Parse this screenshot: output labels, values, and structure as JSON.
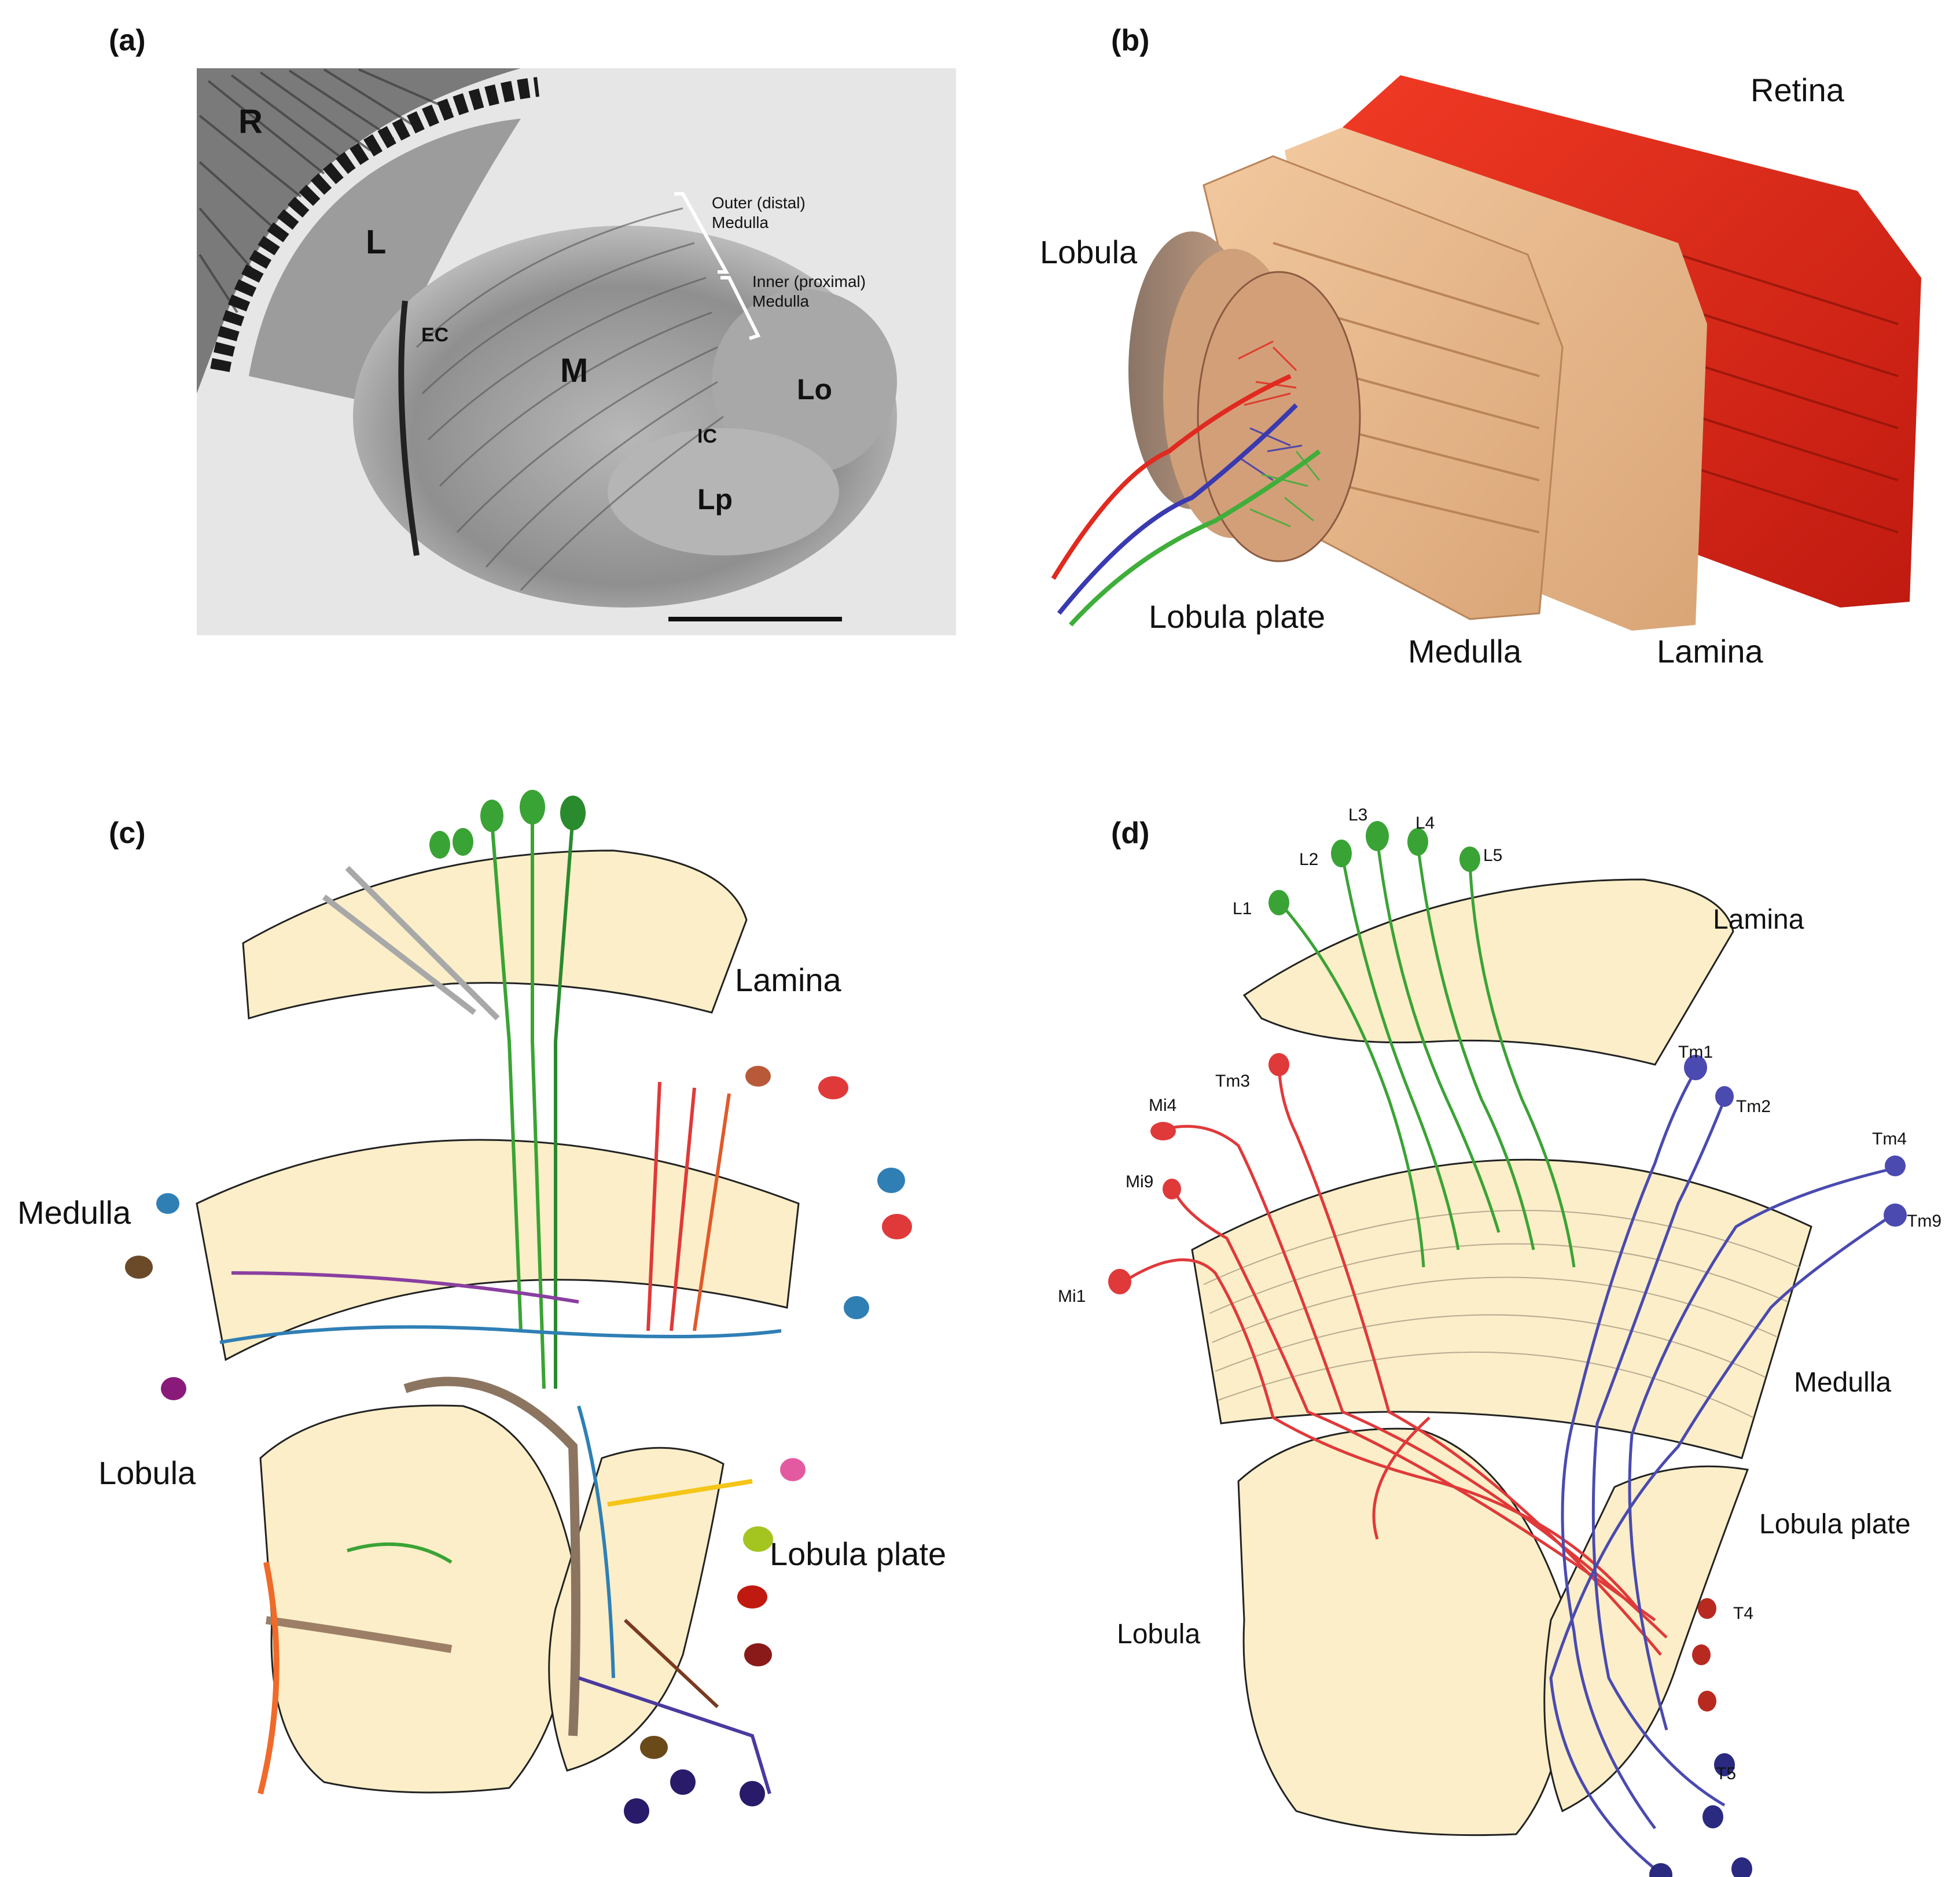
{
  "panels": {
    "a": {
      "letter": "(a)",
      "labels": {
        "R": "R",
        "L": "L",
        "EC": "EC",
        "M": "M",
        "IC": "IC",
        "Lo": "Lo",
        "Lp": "Lp",
        "outer": "Outer (distal)",
        "outer2": "Medulla",
        "inner": "Inner (proximal)",
        "inner2": "Medulla"
      }
    },
    "b": {
      "letter": "(b)",
      "labels": {
        "retina": "Retina",
        "lobula": "Lobula",
        "lobula_plate": "Lobula plate",
        "medulla": "Medulla",
        "lamina": "Lamina"
      }
    },
    "c": {
      "letter": "(c)",
      "labels": {
        "lamina": "Lamina",
        "medulla": "Medulla",
        "lobula": "Lobula",
        "lobula_plate": "Lobula plate"
      }
    },
    "d": {
      "letter": "(d)",
      "labels": {
        "lamina": "Lamina",
        "medulla": "Medulla",
        "lobula": "Lobula",
        "lobula_plate": "Lobula plate",
        "L1": "L1",
        "L2": "L2",
        "L3": "L3",
        "L4": "L4",
        "L5": "L5",
        "Mi1": "Mi1",
        "Mi4": "Mi4",
        "Mi9": "Mi9",
        "Tm3": "Tm3",
        "Tm1": "Tm1",
        "Tm2": "Tm2",
        "Tm4": "Tm4",
        "Tm9": "Tm9",
        "T4": "T4",
        "T5": "T5"
      }
    }
  },
  "colors": {
    "neuropil_fill": "#fbeec8",
    "retina_red": "#e02818",
    "tan": "#e9b98c",
    "green": "#3aa335",
    "red": "#e0393a",
    "blue": "#4a4ab0"
  }
}
